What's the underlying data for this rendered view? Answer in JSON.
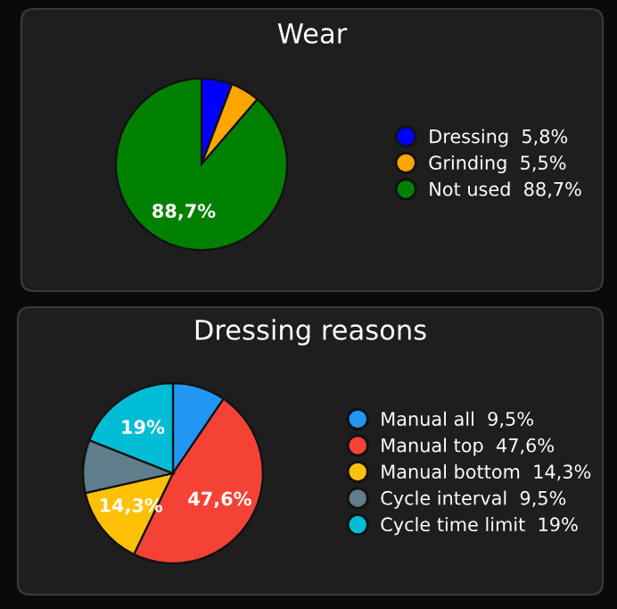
{
  "chart_data": [
    {
      "type": "pie",
      "title": "Wear",
      "categories": [
        "Dressing  5,8%",
        "Grinding  5,5%",
        "Not used  88,7%"
      ],
      "values": [
        5.8,
        5.5,
        88.7
      ],
      "colors": [
        "#0000ff",
        "#ffa500",
        "#008000"
      ],
      "value_labels": [
        null,
        null,
        "88,7%"
      ],
      "legend": "right"
    },
    {
      "type": "pie",
      "title": "Dressing reasons",
      "categories": [
        "Manual all  9,5%",
        "Manual top  47,6%",
        "Manual bottom  14,3%",
        "Cycle interval  9,5%",
        "Cycle time limit  19%"
      ],
      "values": [
        9.5,
        47.6,
        14.3,
        9.5,
        19
      ],
      "colors": [
        "#2196f3",
        "#f44336",
        "#ffc107",
        "#607d8b",
        "#00bcd4"
      ],
      "value_labels": [
        null,
        "47,6%",
        "14,3%",
        null,
        "19%"
      ],
      "legend": "right"
    }
  ]
}
